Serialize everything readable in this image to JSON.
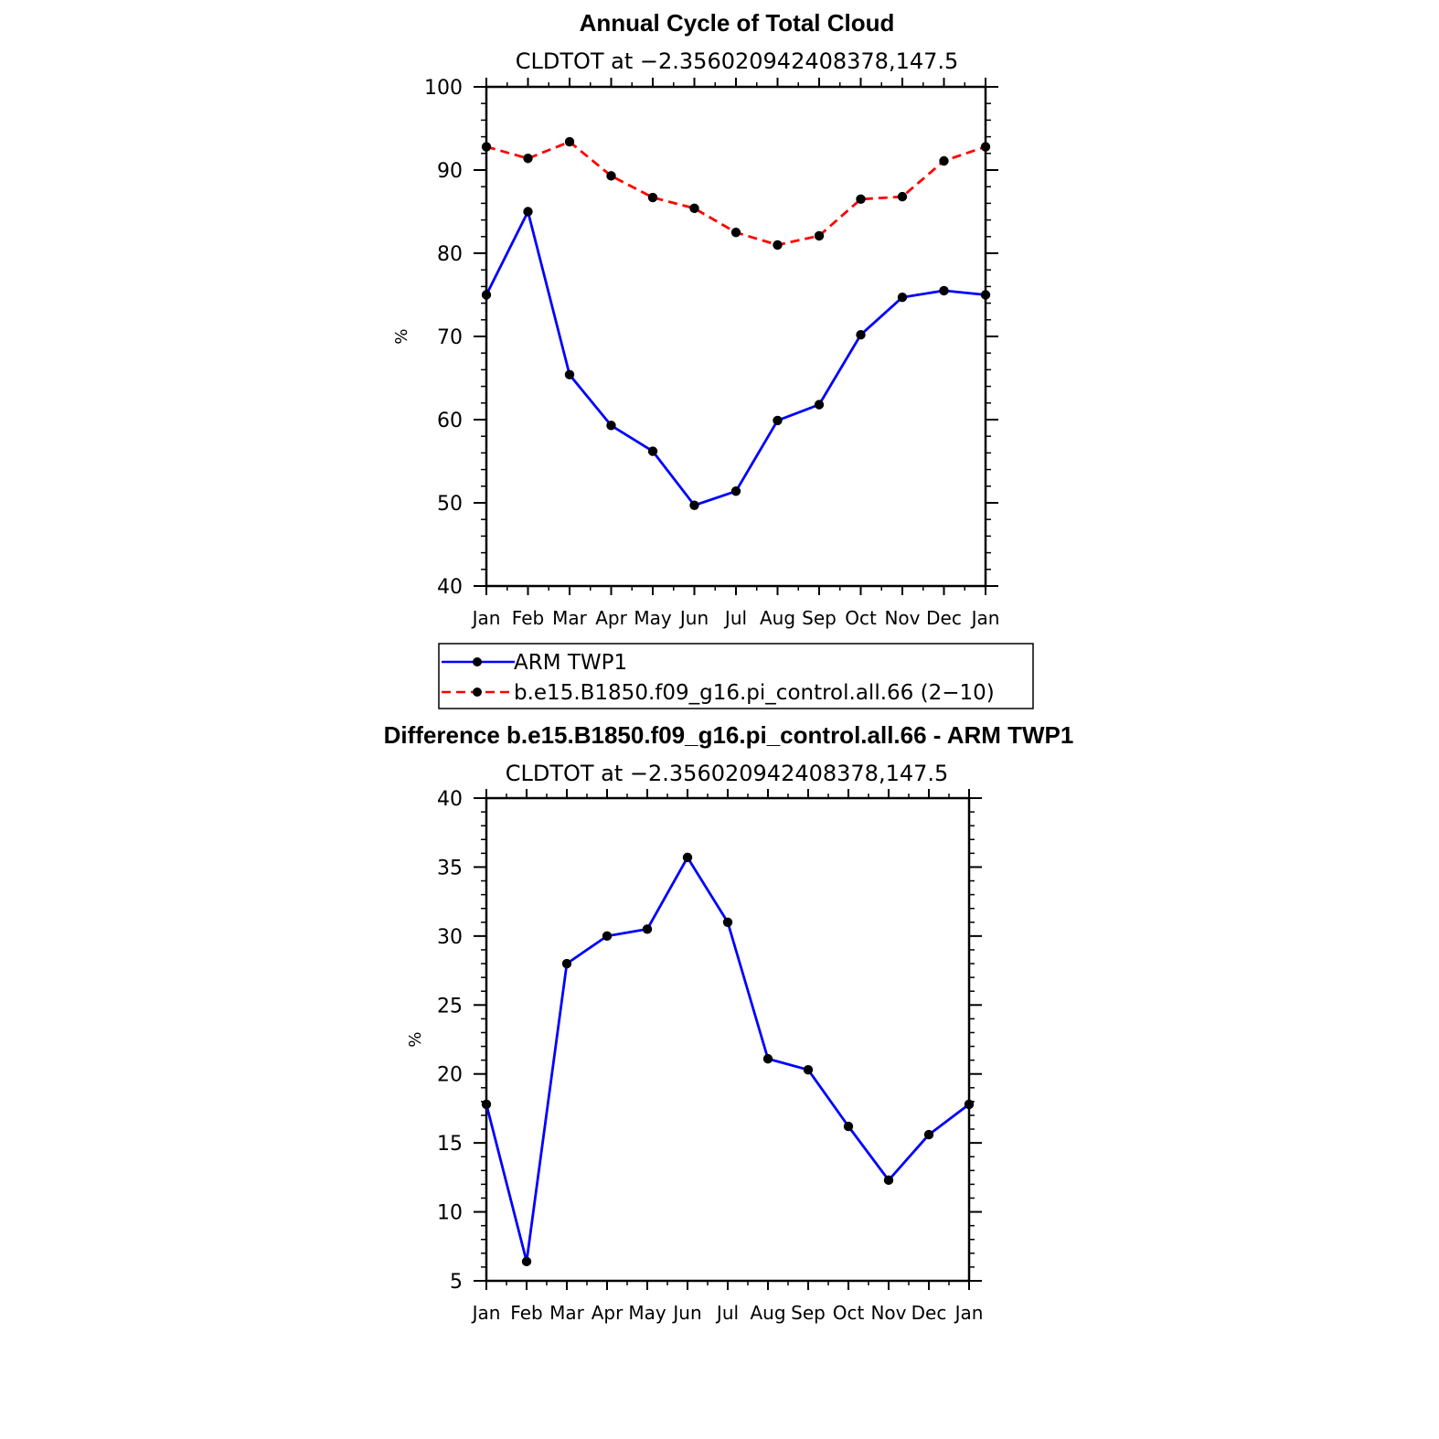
{
  "chart_data": [
    {
      "type": "line",
      "title": "Annual Cycle of Total Cloud",
      "subtitle": "CLDTOT at −2.356020942408378,147.5",
      "ylabel": "%",
      "ylim": [
        40,
        100
      ],
      "yticks": [
        40,
        50,
        60,
        70,
        80,
        90,
        100
      ],
      "categories": [
        "Jan",
        "Feb",
        "Mar",
        "Apr",
        "May",
        "Jun",
        "Jul",
        "Aug",
        "Sep",
        "Oct",
        "Nov",
        "Dec",
        "Jan"
      ],
      "series": [
        {
          "name": "ARM TWP1",
          "color": "#0000ff",
          "dash": "solid",
          "values": [
            75.0,
            85.0,
            65.4,
            59.3,
            56.2,
            49.7,
            51.4,
            59.9,
            61.8,
            70.2,
            74.7,
            75.5,
            75.0
          ]
        },
        {
          "name": "b.e15.B1850.f09_g16.pi_control.all.66 (2−10)",
          "color": "#ff0000",
          "dash": "dashed",
          "values": [
            92.8,
            91.4,
            93.4,
            89.3,
            86.7,
            85.4,
            82.5,
            81.0,
            82.1,
            86.5,
            86.8,
            91.1,
            92.8
          ]
        }
      ],
      "legend_position": "below"
    },
    {
      "type": "line",
      "title": "Difference b.e15.B1850.f09_g16.pi_control.all.66 - ARM TWP1",
      "subtitle": "CLDTOT at −2.356020942408378,147.5",
      "ylabel": "%",
      "ylim": [
        5,
        40
      ],
      "yticks": [
        5,
        10,
        15,
        20,
        25,
        30,
        35,
        40
      ],
      "categories": [
        "Jan",
        "Feb",
        "Mar",
        "Apr",
        "May",
        "Jun",
        "Jul",
        "Aug",
        "Sep",
        "Oct",
        "Nov",
        "Dec",
        "Jan"
      ],
      "series": [
        {
          "color": "#0000ff",
          "dash": "solid",
          "values": [
            17.8,
            6.4,
            28.0,
            30.0,
            30.5,
            35.7,
            31.0,
            21.1,
            20.3,
            16.2,
            12.3,
            15.6,
            17.8
          ]
        }
      ]
    }
  ]
}
